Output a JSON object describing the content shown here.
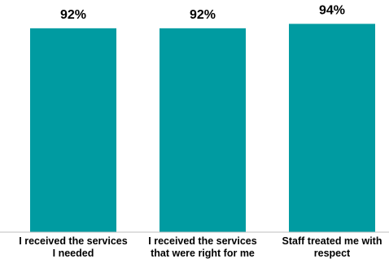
{
  "chart_data": {
    "type": "bar",
    "categories": [
      [
        "I received the services",
        "I needed"
      ],
      [
        "I received the services",
        "that were right for me"
      ],
      [
        "Staff treated me with",
        "respect"
      ]
    ],
    "values": [
      92,
      92,
      94
    ],
    "data_labels": [
      "92%",
      "92%",
      "94%"
    ],
    "title": "",
    "xlabel": "",
    "ylabel": "",
    "ylim": [
      0,
      100
    ],
    "grid": false,
    "legend": "none",
    "bar_color": "#009ba1"
  }
}
